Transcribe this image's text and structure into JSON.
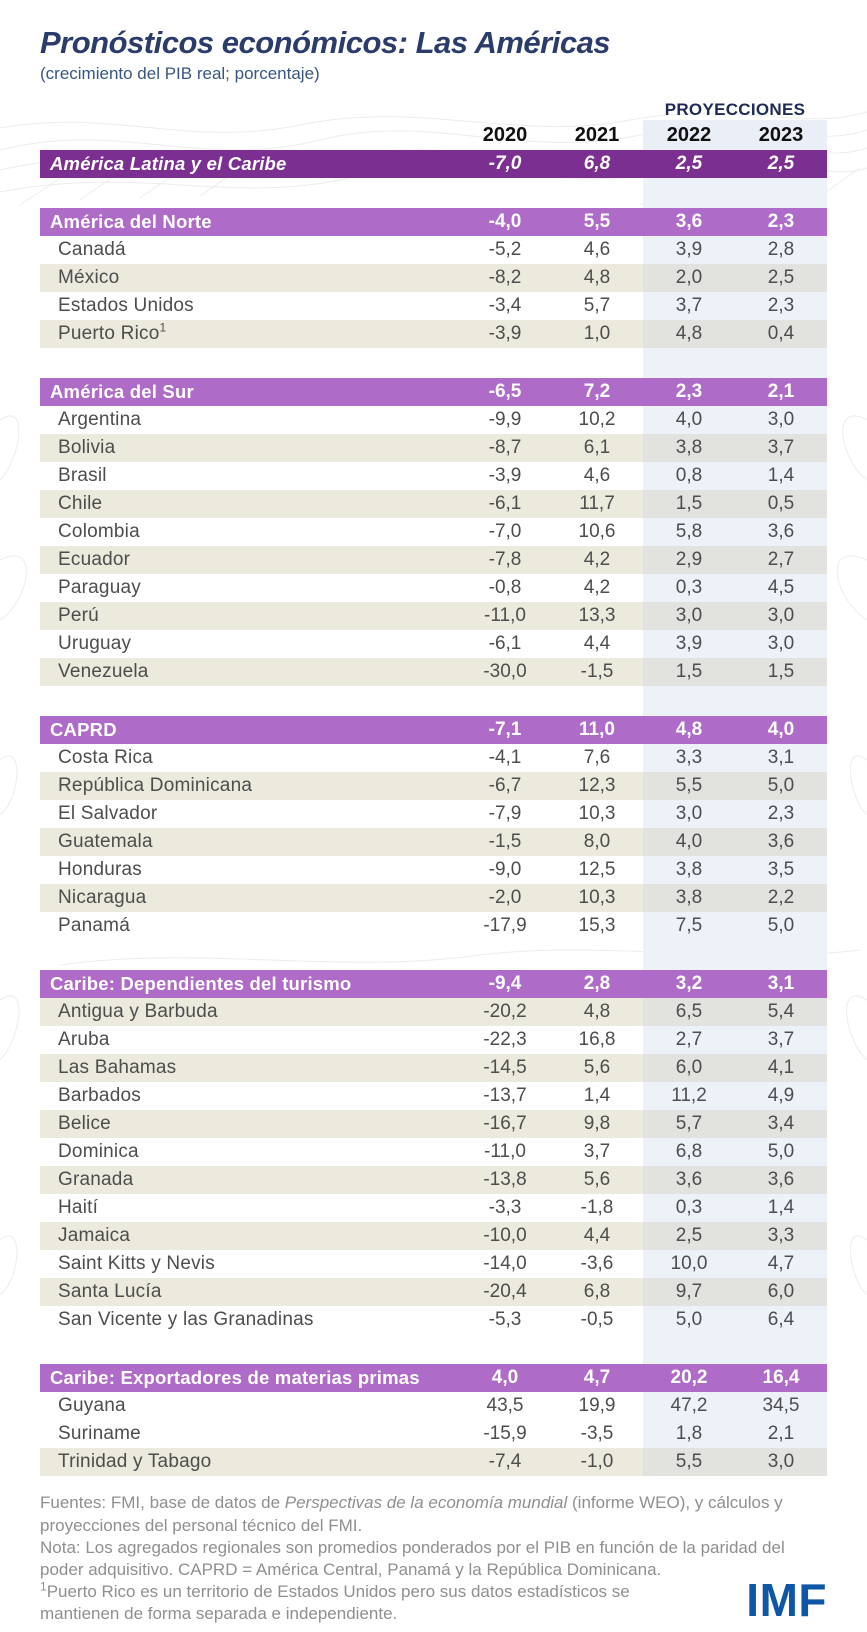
{
  "header": {
    "title": "Pronósticos económicos: Las Américas",
    "subtitle": "(crecimiento del PIB real; porcentaje)",
    "projections_label": "PROYECCIONES"
  },
  "chart_data": {
    "type": "table",
    "title": "Pronósticos económicos: Las Américas",
    "unit": "crecimiento del PIB real; porcentaje",
    "columns": [
      "2020",
      "2021",
      "2022",
      "2023"
    ],
    "projection_columns": [
      "2022",
      "2023"
    ],
    "total": {
      "label": "América Latina y el Caribe",
      "values": [
        "-7,0",
        "6,8",
        "2,5",
        "2,5"
      ]
    },
    "sections": [
      {
        "label": "América del Norte",
        "values": [
          "-4,0",
          "5,5",
          "3,6",
          "2,3"
        ],
        "rows": [
          {
            "label": "Canadá",
            "values": [
              "-5,2",
              "4,6",
              "3,9",
              "2,8"
            ],
            "shaded": false
          },
          {
            "label": "México",
            "values": [
              "-8,2",
              "4,8",
              "2,0",
              "2,5"
            ],
            "shaded": true
          },
          {
            "label": "Estados Unidos",
            "values": [
              "-3,4",
              "5,7",
              "3,7",
              "2,3"
            ],
            "shaded": false
          },
          {
            "label": "Puerto Rico",
            "footnote": "1",
            "values": [
              "-3,9",
              "1,0",
              "4,8",
              "0,4"
            ],
            "shaded": true
          }
        ]
      },
      {
        "label": "América del Sur",
        "values": [
          "-6,5",
          "7,2",
          "2,3",
          "2,1"
        ],
        "rows": [
          {
            "label": "Argentina",
            "values": [
              "-9,9",
              "10,2",
              "4,0",
              "3,0"
            ],
            "shaded": false
          },
          {
            "label": "Bolivia",
            "values": [
              "-8,7",
              "6,1",
              "3,8",
              "3,7"
            ],
            "shaded": true
          },
          {
            "label": "Brasil",
            "values": [
              "-3,9",
              "4,6",
              "0,8",
              "1,4"
            ],
            "shaded": false
          },
          {
            "label": "Chile",
            "values": [
              "-6,1",
              "11,7",
              "1,5",
              "0,5"
            ],
            "shaded": true
          },
          {
            "label": "Colombia",
            "values": [
              "-7,0",
              "10,6",
              "5,8",
              "3,6"
            ],
            "shaded": false
          },
          {
            "label": "Ecuador",
            "values": [
              "-7,8",
              "4,2",
              "2,9",
              "2,7"
            ],
            "shaded": true
          },
          {
            "label": "Paraguay",
            "values": [
              "-0,8",
              "4,2",
              "0,3",
              "4,5"
            ],
            "shaded": false
          },
          {
            "label": "Perú",
            "values": [
              "-11,0",
              "13,3",
              "3,0",
              "3,0"
            ],
            "shaded": true
          },
          {
            "label": "Uruguay",
            "values": [
              "-6,1",
              "4,4",
              "3,9",
              "3,0"
            ],
            "shaded": false
          },
          {
            "label": "Venezuela",
            "values": [
              "-30,0",
              "-1,5",
              "1,5",
              "1,5"
            ],
            "shaded": true
          }
        ]
      },
      {
        "label": "CAPRD",
        "values": [
          "-7,1",
          "11,0",
          "4,8",
          "4,0"
        ],
        "rows": [
          {
            "label": "Costa Rica",
            "values": [
              "-4,1",
              "7,6",
              "3,3",
              "3,1"
            ],
            "shaded": false
          },
          {
            "label": "República Dominicana",
            "values": [
              "-6,7",
              "12,3",
              "5,5",
              "5,0"
            ],
            "shaded": true
          },
          {
            "label": "El Salvador",
            "values": [
              "-7,9",
              "10,3",
              "3,0",
              "2,3"
            ],
            "shaded": false
          },
          {
            "label": "Guatemala",
            "values": [
              "-1,5",
              "8,0",
              "4,0",
              "3,6"
            ],
            "shaded": true
          },
          {
            "label": "Honduras",
            "values": [
              "-9,0",
              "12,5",
              "3,8",
              "3,5"
            ],
            "shaded": false
          },
          {
            "label": "Nicaragua",
            "values": [
              "-2,0",
              "10,3",
              "3,8",
              "2,2"
            ],
            "shaded": true
          },
          {
            "label": "Panamá",
            "values": [
              "-17,9",
              "15,3",
              "7,5",
              "5,0"
            ],
            "shaded": false
          }
        ]
      },
      {
        "label": "Caribe: Dependientes del turismo",
        "values": [
          "-9,4",
          "2,8",
          "3,2",
          "3,1"
        ],
        "rows": [
          {
            "label": "Antigua y Barbuda",
            "values": [
              "-20,2",
              "4,8",
              "6,5",
              "5,4"
            ],
            "shaded": true
          },
          {
            "label": "Aruba",
            "values": [
              "-22,3",
              "16,8",
              "2,7",
              "3,7"
            ],
            "shaded": false
          },
          {
            "label": "Las Bahamas",
            "values": [
              "-14,5",
              "5,6",
              "6,0",
              "4,1"
            ],
            "shaded": true
          },
          {
            "label": "Barbados",
            "values": [
              "-13,7",
              "1,4",
              "11,2",
              "4,9"
            ],
            "shaded": false
          },
          {
            "label": "Belice",
            "values": [
              "-16,7",
              "9,8",
              "5,7",
              "3,4"
            ],
            "shaded": true
          },
          {
            "label": "Dominica",
            "values": [
              "-11,0",
              "3,7",
              "6,8",
              "5,0"
            ],
            "shaded": false
          },
          {
            "label": "Granada",
            "values": [
              "-13,8",
              "5,6",
              "3,6",
              "3,6"
            ],
            "shaded": true
          },
          {
            "label": "Haití",
            "values": [
              "-3,3",
              "-1,8",
              "0,3",
              "1,4"
            ],
            "shaded": false
          },
          {
            "label": "Jamaica",
            "values": [
              "-10,0",
              "4,4",
              "2,5",
              "3,3"
            ],
            "shaded": true
          },
          {
            "label": "Saint Kitts y Nevis",
            "values": [
              "-14,0",
              "-3,6",
              "10,0",
              "4,7"
            ],
            "shaded": false
          },
          {
            "label": "Santa Lucía",
            "values": [
              "-20,4",
              "6,8",
              "9,7",
              "6,0"
            ],
            "shaded": true
          },
          {
            "label": "San Vicente y las Granadinas",
            "values": [
              "-5,3",
              "-0,5",
              "5,0",
              "6,4"
            ],
            "shaded": false
          }
        ]
      },
      {
        "label": "Caribe: Exportadores de materias primas",
        "values": [
          "4,0",
          "4,7",
          "20,2",
          "16,4"
        ],
        "rows": [
          {
            "label": "Guyana",
            "values": [
              "43,5",
              "19,9",
              "47,2",
              "34,5"
            ],
            "shaded": false
          },
          {
            "label": "Suriname",
            "values": [
              "-15,9",
              "-3,5",
              "1,8",
              "2,1"
            ],
            "shaded": false
          },
          {
            "label": "Trinidad y Tabago",
            "values": [
              "-7,4",
              "-1,0",
              "5,5",
              "3,0"
            ],
            "shaded": true
          }
        ]
      }
    ]
  },
  "footer": {
    "sources_pre": "Fuentes: FMI, base de datos de ",
    "sources_italic": "Perspectivas de la economía mundial",
    "sources_post": " (informe WEO), y cálculos y proyecciones del personal técnico del FMI.",
    "note": "Nota: Los agregados regionales son promedios ponderados por el PIB en función de la paridad del poder adquisitivo. CAPRD = América Central, Panamá y la República Dominicana.",
    "footnote_marker": "1",
    "footnote_text": "Puerto Rico es un territorio de Estados Unidos pero sus datos estadísticos se mantienen de forma separada e independiente.",
    "logo": "IMF"
  },
  "colors": {
    "total_band_purple": "#7b2f91",
    "section_band_purple": "#ae6bc8",
    "row_beige": "#ece9dd",
    "projection_band_blue": "#edf1f8",
    "title_navy": "#2b3c6b",
    "projections_label_navy": "#1f2a56",
    "body_text_gray": "#4d4d4d",
    "footer_gray": "#8f8f8f",
    "imf_blue": "#1056a6"
  }
}
